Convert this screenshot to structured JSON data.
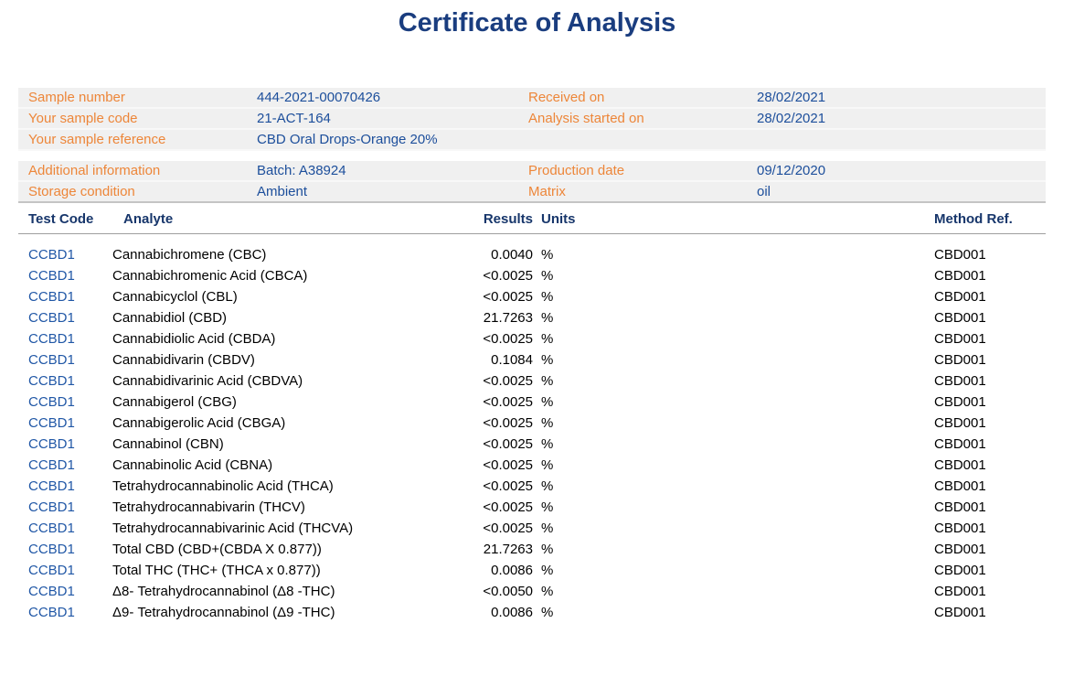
{
  "title": "Certificate of Analysis",
  "sample_info": {
    "rows": [
      {
        "label1": "Sample number",
        "value1": "444-2021-00070426",
        "label2": "Received on",
        "value2": "28/02/2021"
      },
      {
        "label1": "Your sample code",
        "value1": "21-ACT-164",
        "label2": "Analysis started on",
        "value2": "28/02/2021"
      },
      {
        "label1": "Your sample reference",
        "value1": "CBD Oral Drops-Orange 20%",
        "label2": "",
        "value2": ""
      }
    ]
  },
  "additional_info": {
    "rows": [
      {
        "label1": "Additional information",
        "value1": "Batch: A38924",
        "label2": "Production date",
        "value2": "09/12/2020"
      },
      {
        "label1": "Storage condition",
        "value1": "Ambient",
        "label2": "Matrix",
        "value2": "oil"
      }
    ]
  },
  "results_table": {
    "headers": {
      "test_code": "Test Code",
      "analyte": "Analyte",
      "results": "Results",
      "units": "Units",
      "method_ref": "Method Ref."
    },
    "rows": [
      {
        "test_code": "CCBD1",
        "analyte": "Cannabichromene (CBC)",
        "result": "0.0040",
        "units": "%",
        "method_ref": "CBD001"
      },
      {
        "test_code": "CCBD1",
        "analyte": "Cannabichromenic Acid (CBCA)",
        "result": "<0.0025",
        "units": "%",
        "method_ref": "CBD001"
      },
      {
        "test_code": "CCBD1",
        "analyte": "Cannabicyclol (CBL)",
        "result": "<0.0025",
        "units": "%",
        "method_ref": "CBD001"
      },
      {
        "test_code": "CCBD1",
        "analyte": "Cannabidiol (CBD)",
        "result": "21.7263",
        "units": "%",
        "method_ref": "CBD001"
      },
      {
        "test_code": "CCBD1",
        "analyte": "Cannabidiolic Acid (CBDA)",
        "result": "<0.0025",
        "units": "%",
        "method_ref": "CBD001"
      },
      {
        "test_code": "CCBD1",
        "analyte": "Cannabidivarin (CBDV)",
        "result": "0.1084",
        "units": "%",
        "method_ref": "CBD001"
      },
      {
        "test_code": "CCBD1",
        "analyte": "Cannabidivarinic Acid (CBDVA)",
        "result": "<0.0025",
        "units": "%",
        "method_ref": "CBD001"
      },
      {
        "test_code": "CCBD1",
        "analyte": "Cannabigerol (CBG)",
        "result": "<0.0025",
        "units": "%",
        "method_ref": "CBD001"
      },
      {
        "test_code": "CCBD1",
        "analyte": "Cannabigerolic Acid (CBGA)",
        "result": "<0.0025",
        "units": "%",
        "method_ref": "CBD001"
      },
      {
        "test_code": "CCBD1",
        "analyte": "Cannabinol (CBN)",
        "result": "<0.0025",
        "units": "%",
        "method_ref": "CBD001"
      },
      {
        "test_code": "CCBD1",
        "analyte": "Cannabinolic Acid (CBNA)",
        "result": "<0.0025",
        "units": "%",
        "method_ref": "CBD001"
      },
      {
        "test_code": "CCBD1",
        "analyte": "Tetrahydrocannabinolic Acid (THCA)",
        "result": "<0.0025",
        "units": "%",
        "method_ref": "CBD001"
      },
      {
        "test_code": "CCBD1",
        "analyte": "Tetrahydrocannabivarin (THCV)",
        "result": "<0.0025",
        "units": "%",
        "method_ref": "CBD001"
      },
      {
        "test_code": "CCBD1",
        "analyte": "Tetrahydrocannabivarinic Acid (THCVA)",
        "result": "<0.0025",
        "units": "%",
        "method_ref": "CBD001"
      },
      {
        "test_code": "CCBD1",
        "analyte": "Total CBD (CBD+(CBDA X 0.877))",
        "result": "21.7263",
        "units": "%",
        "method_ref": "CBD001"
      },
      {
        "test_code": "CCBD1",
        "analyte": "Total THC (THC+ (THCA x 0.877))",
        "result": "0.0086",
        "units": "%",
        "method_ref": "CBD001"
      },
      {
        "test_code": "CCBD1",
        "analyte": "Δ8- Tetrahydrocannabinol (Δ8 -THC)",
        "result": "<0.0050",
        "units": "%",
        "method_ref": "CBD001"
      },
      {
        "test_code": "CCBD1",
        "analyte": "Δ9- Tetrahydrocannabinol (Δ9 -THC)",
        "result": "0.0086",
        "units": "%",
        "method_ref": "CBD001"
      }
    ]
  },
  "colors": {
    "title_navy": "#1a3d7f",
    "header_navy": "#17366b",
    "label_orange": "#ed8639",
    "value_blue": "#1c4e9b",
    "code_blue": "#2057a6",
    "block_gray": "#f0f0f0",
    "text_black": "#000000",
    "header_rule_gray": "#9e9e9e",
    "block_bottom_rule_gray": "#c4c4c4"
  }
}
